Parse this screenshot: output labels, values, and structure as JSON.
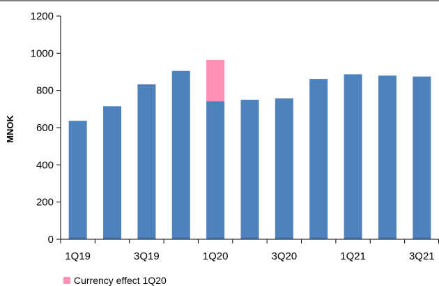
{
  "chart_data": {
    "type": "bar",
    "stacked": true,
    "categories": [
      "1Q19",
      "2Q19",
      "3Q19",
      "4Q19",
      "1Q20",
      "2Q20",
      "3Q20",
      "4Q20",
      "1Q21",
      "2Q21",
      "3Q21"
    ],
    "x_tick_labels": [
      "1Q19",
      "",
      "3Q19",
      "",
      "1Q20",
      "",
      "3Q20",
      "",
      "1Q21",
      "",
      "3Q21"
    ],
    "series": [
      {
        "key": "base",
        "values": [
          637,
          715,
          833,
          905,
          742,
          750,
          757,
          862,
          887,
          880,
          875
        ],
        "color": "#4F81BD"
      },
      {
        "key": "currency",
        "name": "Currency effect 1Q20",
        "values": [
          0,
          0,
          0,
          0,
          222,
          0,
          0,
          0,
          0,
          0,
          0
        ],
        "color": "#FF8FB4"
      }
    ],
    "ylabel": "MNOK",
    "xlabel": "",
    "ylim": [
      0,
      1200
    ],
    "yticks": [
      0,
      200,
      400,
      600,
      800,
      1000,
      1200
    ],
    "grid": false,
    "legend": {
      "position": "bottom-left",
      "entries": [
        "Currency effect 1Q20"
      ]
    }
  }
}
